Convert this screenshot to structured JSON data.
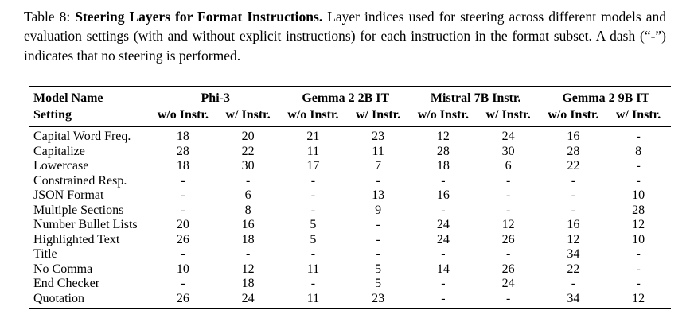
{
  "caption": {
    "label": "Table 8: ",
    "title_bold": "Steering Layers for Format Instructions.",
    "body": " Layer indices used for steering across different models and evaluation settings (with and without explicit instructions) for each instruction in the format subset. A dash (“-”) indicates that no steering is performed."
  },
  "table": {
    "corner": {
      "line1": "Model Name",
      "line2": "Setting"
    },
    "groups": [
      {
        "label": "Phi-3"
      },
      {
        "label": "Gemma 2 2B IT"
      },
      {
        "label": "Mistral 7B Instr."
      },
      {
        "label": "Gemma 2 9B IT"
      }
    ],
    "subheaders": [
      "w/o Instr.",
      "w/ Instr."
    ],
    "rows": [
      {
        "setting": "Capital Word Freq.",
        "values": [
          "18",
          "20",
          "21",
          "23",
          "12",
          "24",
          "16",
          "-"
        ]
      },
      {
        "setting": "Capitalize",
        "values": [
          "28",
          "22",
          "11",
          "11",
          "28",
          "30",
          "28",
          "8"
        ]
      },
      {
        "setting": "Lowercase",
        "values": [
          "18",
          "30",
          "17",
          "7",
          "18",
          "6",
          "22",
          "-"
        ]
      },
      {
        "setting": "Constrained Resp.",
        "values": [
          "-",
          "-",
          "-",
          "-",
          "-",
          "-",
          "-",
          "-"
        ]
      },
      {
        "setting": "JSON Format",
        "values": [
          "-",
          "6",
          "-",
          "13",
          "16",
          "-",
          "-",
          "10"
        ]
      },
      {
        "setting": "Multiple Sections",
        "values": [
          "-",
          "8",
          "-",
          "9",
          "-",
          "-",
          "-",
          "28"
        ]
      },
      {
        "setting": "Number Bullet Lists",
        "values": [
          "20",
          "16",
          "5",
          "-",
          "24",
          "12",
          "16",
          "12"
        ]
      },
      {
        "setting": "Highlighted Text",
        "values": [
          "26",
          "18",
          "5",
          "-",
          "24",
          "26",
          "12",
          "10"
        ]
      },
      {
        "setting": "Title",
        "values": [
          "-",
          "-",
          "-",
          "-",
          "-",
          "-",
          "34",
          "-"
        ]
      },
      {
        "setting": "No Comma",
        "values": [
          "10",
          "12",
          "11",
          "5",
          "14",
          "26",
          "22",
          "-"
        ]
      },
      {
        "setting": "End Checker",
        "values": [
          "-",
          "18",
          "-",
          "5",
          "-",
          "24",
          "-",
          "-"
        ]
      },
      {
        "setting": "Quotation",
        "values": [
          "26",
          "24",
          "11",
          "23",
          "-",
          "-",
          "34",
          "12"
        ]
      }
    ]
  }
}
